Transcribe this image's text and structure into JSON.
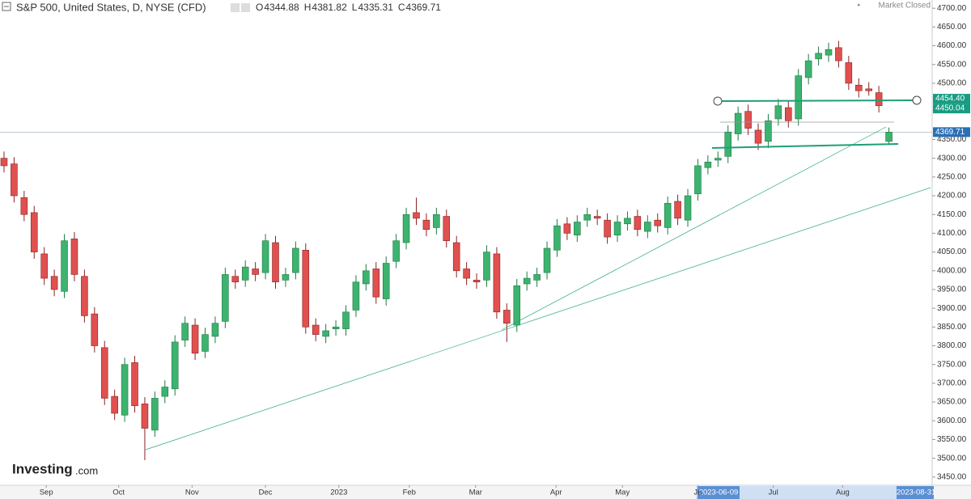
{
  "chart_data": {
    "type": "candlestick",
    "title": "S&P 500, United States, D, NYSE (CFD)",
    "status": "Market Closed",
    "ohlc_labels": [
      "O",
      "H",
      "L",
      "C"
    ],
    "logo": {
      "brand": "Investing",
      "suffix": ".com"
    },
    "range_labels": [
      "2023-06-09",
      "2023-08-31"
    ],
    "up_color": "#3cb36f",
    "down_color": "#e0504f",
    "open": [
      4300,
      4285,
      4195,
      4155,
      4045,
      3985,
      3945,
      4085,
      3985,
      3885,
      3795,
      3665,
      3615,
      3755,
      3645,
      3575,
      3665,
      3685,
      3815,
      3855,
      3785,
      3825,
      3865,
      3985,
      3975,
      4005,
      3995,
      4075,
      3975,
      3995,
      4055,
      3855,
      3825,
      3845,
      3845,
      3895,
      3965,
      4005,
      3925,
      4025,
      4075,
      4155,
      4135,
      4115,
      4145,
      4075,
      4005,
      3975,
      3975,
      4045,
      3895,
      3855,
      3965,
      3975,
      3995,
      4055,
      4125,
      4095,
      4135,
      4145,
      4135,
      4095,
      4125,
      4145,
      4105,
      4135,
      4115,
      4185,
      4135,
      4205,
      4275,
      4295,
      4305,
      4365,
      4425,
      4375,
      4345,
      4405,
      4435,
      4405,
      4515,
      4565,
      4575,
      4595,
      4555,
      4495,
      4485,
      4475,
      4344.88
    ],
    "high": [
      4318,
      4303,
      4213,
      4173,
      4063,
      4003,
      4098,
      4103,
      4003,
      3903,
      3813,
      3683,
      3768,
      3773,
      3663,
      3678,
      3708,
      3828,
      3878,
      3873,
      3848,
      3878,
      4008,
      4003,
      4028,
      4023,
      4098,
      4093,
      4008,
      4078,
      4073,
      3873,
      3858,
      3868,
      3908,
      3988,
      4018,
      4023,
      4038,
      4098,
      4168,
      4195,
      4153,
      4168,
      4163,
      4093,
      4023,
      3993,
      4068,
      4063,
      3913,
      3978,
      3998,
      4008,
      4078,
      4138,
      4143,
      4148,
      4168,
      4163,
      4153,
      4148,
      4158,
      4163,
      4148,
      4153,
      4198,
      4203,
      4218,
      4298,
      4308,
      4318,
      4388,
      4438,
      4443,
      4393,
      4418,
      4458,
      4453,
      4538,
      4578,
      4598,
      4608,
      4613,
      4573,
      4513,
      4503,
      4493,
      4381.82
    ],
    "low": [
      4262,
      4182,
      4132,
      4032,
      3962,
      3932,
      3927,
      3972,
      3862,
      3782,
      3642,
      3602,
      3597,
      3622,
      3495,
      3557,
      3647,
      3667,
      3797,
      3762,
      3767,
      3807,
      3847,
      3952,
      3957,
      3972,
      3977,
      3952,
      3957,
      3977,
      3832,
      3812,
      3807,
      3827,
      3827,
      3877,
      3947,
      3912,
      3907,
      4007,
      4057,
      4122,
      4092,
      4097,
      4062,
      3982,
      3962,
      3952,
      3957,
      3872,
      3810,
      3837,
      3947,
      3957,
      3977,
      4037,
      4082,
      4077,
      4117,
      4122,
      4072,
      4077,
      4107,
      4092,
      4087,
      4102,
      4097,
      4122,
      4117,
      4187,
      4257,
      4277,
      4287,
      4347,
      4362,
      4322,
      4327,
      4387,
      4382,
      4387,
      4497,
      4547,
      4557,
      4542,
      4482,
      4462,
      4467,
      4422,
      4335.31
    ],
    "close": [
      4280,
      4200,
      4150,
      4050,
      3980,
      3950,
      4080,
      3990,
      3880,
      3800,
      3660,
      3620,
      3750,
      3640,
      3580,
      3660,
      3690,
      3810,
      3860,
      3780,
      3830,
      3860,
      3990,
      3970,
      4010,
      3990,
      4080,
      3970,
      3990,
      4060,
      3850,
      3830,
      3840,
      3850,
      3890,
      3970,
      4000,
      3930,
      4020,
      4080,
      4150,
      4140,
      4110,
      4150,
      4080,
      4000,
      3980,
      3970,
      4050,
      3890,
      3860,
      3960,
      3980,
      3990,
      4060,
      4120,
      4100,
      4130,
      4150,
      4140,
      4090,
      4130,
      4140,
      4110,
      4130,
      4120,
      4180,
      4140,
      4200,
      4280,
      4290,
      4300,
      4370,
      4420,
      4380,
      4340,
      4400,
      4440,
      4400,
      4520,
      4560,
      4580,
      4590,
      4560,
      4500,
      4480,
      4480,
      4440,
      4369.71
    ],
    "xlim": [
      -0.4,
      92.3
    ],
    "xticks": [
      {
        "value": 4.2,
        "label": "Sep"
      },
      {
        "value": 11.4,
        "label": "Oct"
      },
      {
        "value": 18.7,
        "label": "Nov"
      },
      {
        "value": 26,
        "label": "Dec"
      },
      {
        "value": 33.3,
        "label": "2023"
      },
      {
        "value": 40.3,
        "label": "Feb"
      },
      {
        "value": 46.9,
        "label": "Mar"
      },
      {
        "value": 54.9,
        "label": "Apr"
      },
      {
        "value": 61.5,
        "label": "May"
      },
      {
        "value": 69,
        "label": "Ju"
      },
      {
        "value": 76.5,
        "label": "Jul"
      },
      {
        "value": 83.4,
        "label": "Aug"
      }
    ],
    "ylim": [
      3428,
      4722
    ],
    "yticks": [
      {
        "value": 4700,
        "label": "4700.00"
      },
      {
        "value": 4650,
        "label": "4650.00"
      },
      {
        "value": 4600,
        "label": "4600.00"
      },
      {
        "value": 4550,
        "label": "4550.00"
      },
      {
        "value": 4500,
        "label": "4500.00"
      },
      {
        "value": 4350,
        "label": "4350.00"
      },
      {
        "value": 4300,
        "label": "4300.00"
      },
      {
        "value": 4250,
        "label": "4250.00"
      },
      {
        "value": 4200,
        "label": "4200.00"
      },
      {
        "value": 4150,
        "label": "4150.00"
      },
      {
        "value": 4100,
        "label": "4100.00"
      },
      {
        "value": 4050,
        "label": "4050.00"
      },
      {
        "value": 4000,
        "label": "4000.00"
      },
      {
        "value": 3950,
        "label": "3950.00"
      },
      {
        "value": 3900,
        "label": "3900.00"
      },
      {
        "value": 3850,
        "label": "3850.00"
      },
      {
        "value": 3800,
        "label": "3800.00"
      },
      {
        "value": 3750,
        "label": "3750.00"
      },
      {
        "value": 3700,
        "label": "3700.00"
      },
      {
        "value": 3650,
        "label": "3650.00"
      },
      {
        "value": 3600,
        "label": "3600.00"
      },
      {
        "value": 3550,
        "label": "3550.00"
      },
      {
        "value": 3500,
        "label": "3500.00"
      },
      {
        "value": 3450,
        "label": "3450.00"
      }
    ],
    "price_markers": [
      {
        "value": 4454.4,
        "label": "4454.40"
      },
      {
        "value": 4450.04,
        "label": "4450.04"
      }
    ]
  }
}
